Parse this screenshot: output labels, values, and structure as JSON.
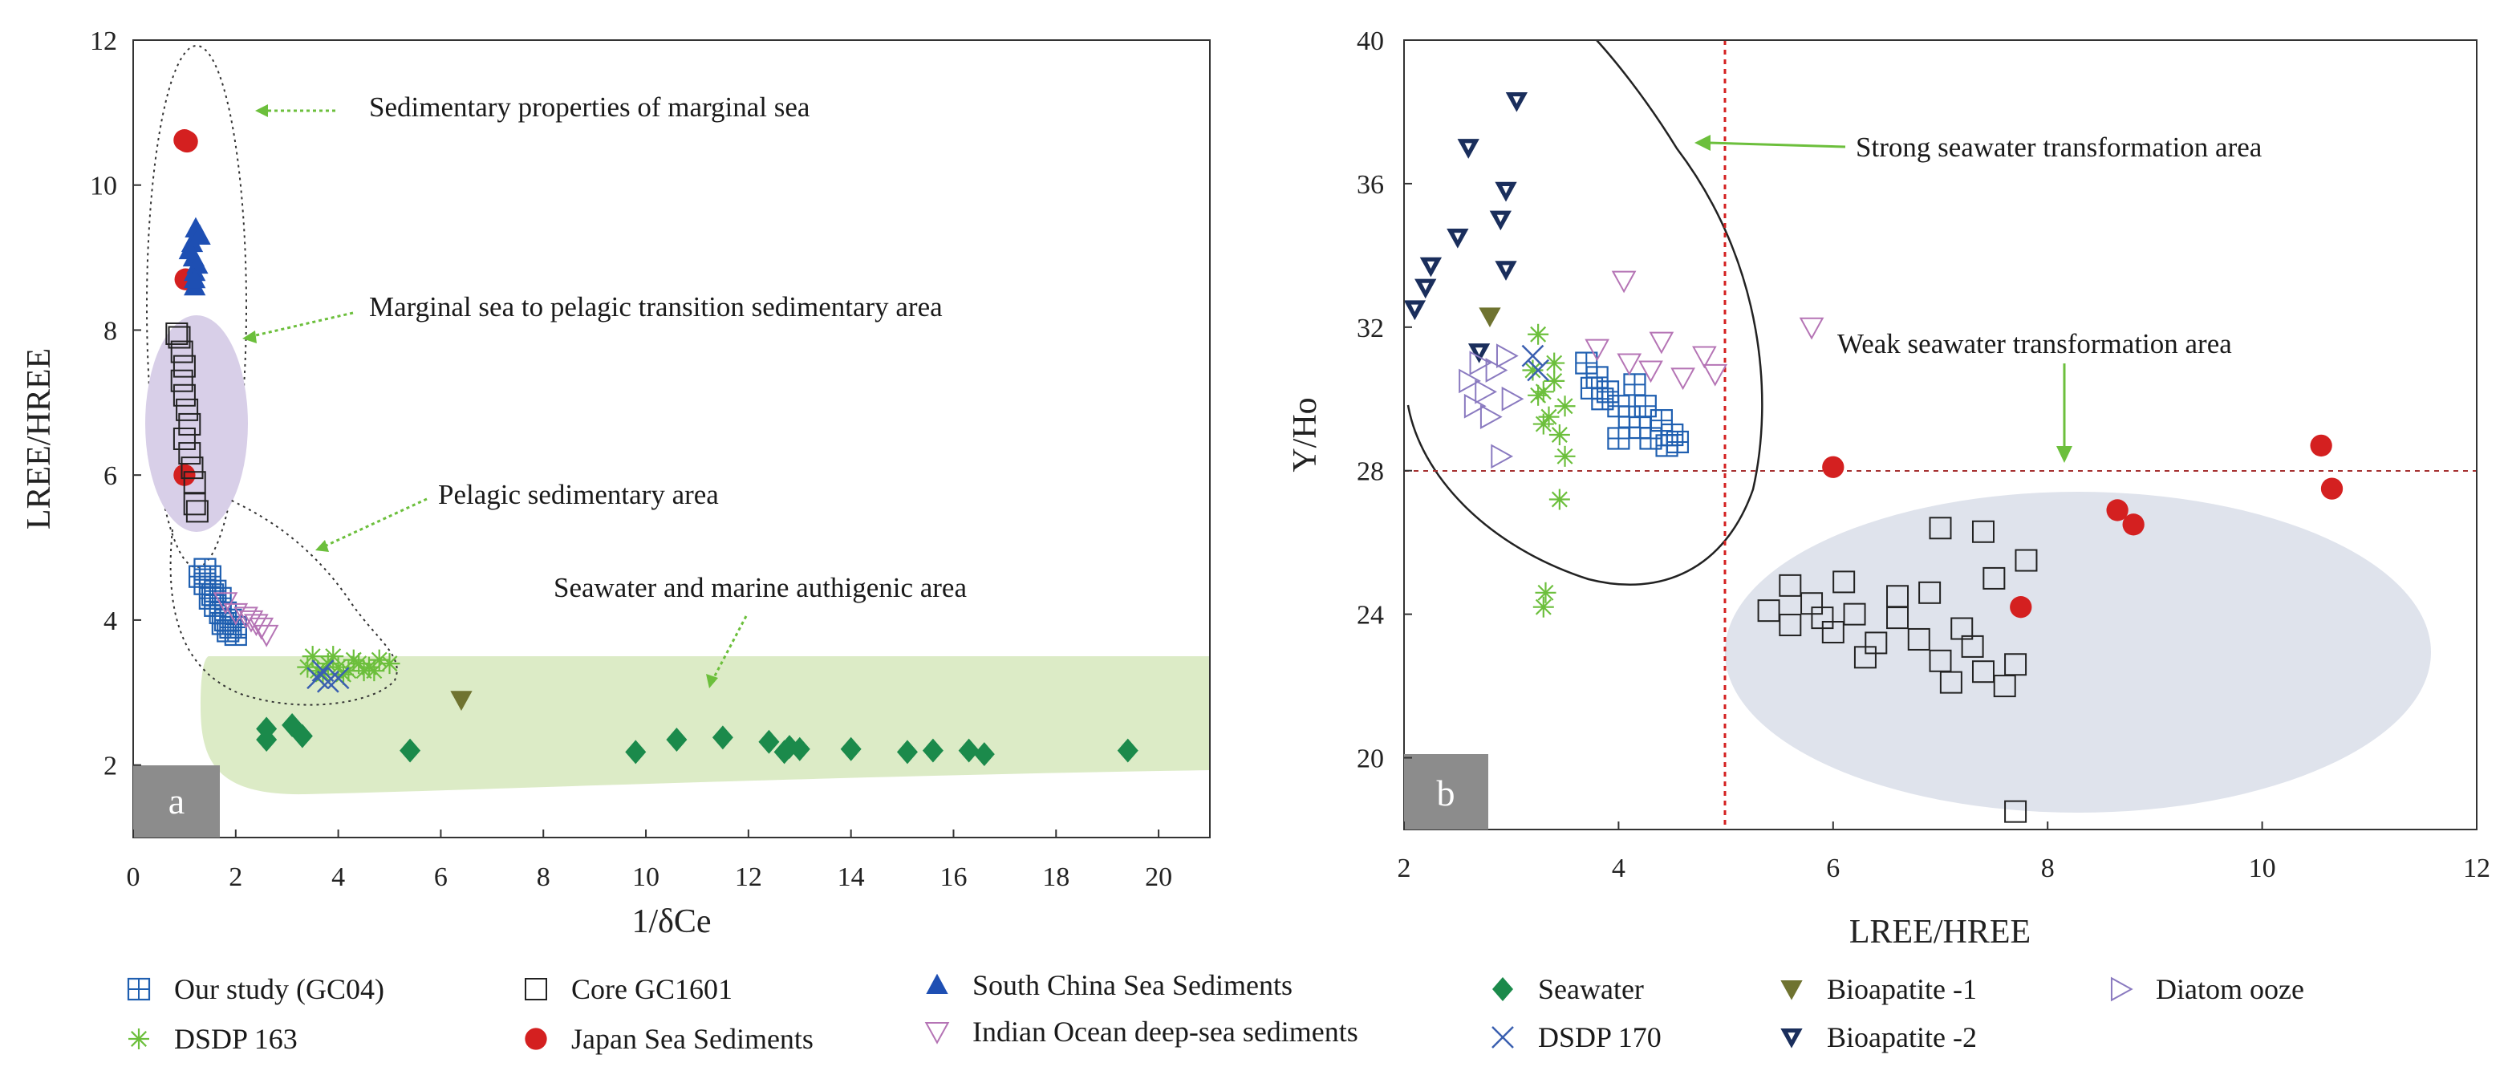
{
  "chart_data": [
    {
      "id": "a",
      "type": "scatter",
      "panel_label": "a",
      "xlabel": "1/δCe",
      "ylabel": "LREE/HREE",
      "xlim": [
        0,
        21
      ],
      "ylim": [
        1,
        12
      ],
      "xticks": [
        0,
        2,
        4,
        6,
        8,
        10,
        12,
        14,
        16,
        18,
        20
      ],
      "yticks": [
        2,
        4,
        6,
        8,
        10,
        12
      ],
      "annotations": [
        {
          "text": "Sedimentary properties of marginal sea",
          "x": 4.6,
          "y": 10.9
        },
        {
          "text": "Marginal sea to pelagic transition sedimentary area",
          "x": 4.6,
          "y": 8.15
        },
        {
          "text": "Pelagic sedimentary area",
          "x": 5.9,
          "y": 5.3
        },
        {
          "text": "Seawater and marine authigenic area",
          "x": 8.2,
          "y": 3.6
        }
      ],
      "series": [
        {
          "name": "Japan Sea Sediments",
          "points": [
            [
              1.05,
              10.6
            ],
            [
              1.0,
              10.62
            ],
            [
              1.02,
              8.7
            ],
            [
              1.0,
              6.0
            ]
          ]
        },
        {
          "name": "South China Sea Sediments",
          "points": [
            [
              1.15,
              9.2
            ],
            [
              1.18,
              9.0
            ],
            [
              1.2,
              8.8
            ],
            [
              1.2,
              8.6
            ],
            [
              1.22,
              9.4
            ],
            [
              1.25,
              8.9
            ],
            [
              1.1,
              9.1
            ],
            [
              1.3,
              9.3
            ],
            [
              1.2,
              8.7
            ]
          ]
        },
        {
          "name": "Core GC1601",
          "points": [
            [
              0.9,
              7.9
            ],
            [
              0.95,
              7.7
            ],
            [
              1.0,
              7.5
            ],
            [
              0.95,
              7.3
            ],
            [
              1.0,
              7.1
            ],
            [
              1.05,
              6.9
            ],
            [
              1.1,
              6.7
            ],
            [
              1.0,
              6.5
            ],
            [
              1.1,
              6.3
            ],
            [
              1.15,
              6.1
            ],
            [
              1.2,
              5.9
            ],
            [
              1.2,
              5.6
            ],
            [
              1.25,
              5.5
            ],
            [
              0.85,
              7.95
            ]
          ]
        },
        {
          "name": "Our study (GC04)",
          "points": [
            [
              1.3,
              4.6
            ],
            [
              1.4,
              4.5
            ],
            [
              1.5,
              4.3
            ],
            [
              1.6,
              4.2
            ],
            [
              1.7,
              4.1
            ],
            [
              1.8,
              4.0
            ],
            [
              1.9,
              3.9
            ],
            [
              2.0,
              3.8
            ],
            [
              1.5,
              4.6
            ],
            [
              1.6,
              4.4
            ],
            [
              1.7,
              4.3
            ],
            [
              1.8,
              4.1
            ],
            [
              1.9,
              4.0
            ],
            [
              2.0,
              3.9
            ],
            [
              1.4,
              4.7
            ],
            [
              1.55,
              4.35
            ],
            [
              1.75,
              3.95
            ],
            [
              1.85,
              3.85
            ]
          ]
        },
        {
          "name": "Indian Ocean deep-sea sediments",
          "points": [
            [
              1.8,
              4.25
            ],
            [
              2.0,
              4.1
            ],
            [
              2.3,
              4.0
            ],
            [
              2.5,
              3.9
            ],
            [
              2.6,
              3.8
            ],
            [
              2.2,
              4.05
            ],
            [
              2.4,
              3.95
            ]
          ]
        },
        {
          "name": "DSDP 163",
          "points": [
            [
              3.4,
              3.35
            ],
            [
              3.6,
              3.3
            ],
            [
              3.8,
              3.4
            ],
            [
              4.0,
              3.35
            ],
            [
              4.2,
              3.3
            ],
            [
              4.4,
              3.4
            ],
            [
              4.6,
              3.35
            ],
            [
              4.8,
              3.45
            ],
            [
              5.0,
              3.4
            ],
            [
              3.5,
              3.5
            ],
            [
              4.1,
              3.25
            ],
            [
              4.5,
              3.3
            ],
            [
              3.7,
              3.25
            ],
            [
              4.3,
              3.45
            ],
            [
              3.9,
              3.5
            ],
            [
              4.7,
              3.3
            ]
          ]
        },
        {
          "name": "DSDP 170",
          "points": [
            [
              3.6,
              3.2
            ],
            [
              3.8,
              3.15
            ],
            [
              4.0,
              3.2
            ],
            [
              3.7,
              3.3
            ]
          ]
        },
        {
          "name": "Seawater",
          "points": [
            [
              2.6,
              2.5
            ],
            [
              2.6,
              2.35
            ],
            [
              3.1,
              2.55
            ],
            [
              3.3,
              2.4
            ],
            [
              5.4,
              2.2
            ],
            [
              9.8,
              2.18
            ],
            [
              10.6,
              2.35
            ],
            [
              11.5,
              2.38
            ],
            [
              12.4,
              2.32
            ],
            [
              12.7,
              2.18
            ],
            [
              12.8,
              2.25
            ],
            [
              13.0,
              2.22
            ],
            [
              14.0,
              2.22
            ],
            [
              15.1,
              2.18
            ],
            [
              15.6,
              2.2
            ],
            [
              16.3,
              2.2
            ],
            [
              16.6,
              2.15
            ],
            [
              19.4,
              2.2
            ]
          ]
        },
        {
          "name": "Bioapatite -1",
          "points": [
            [
              6.4,
              2.9
            ]
          ]
        }
      ]
    },
    {
      "id": "b",
      "type": "scatter",
      "panel_label": "b",
      "xlabel": "LREE/HREE",
      "ylabel": "Y/Ho",
      "xlim": [
        2,
        12
      ],
      "ylim": [
        18,
        40
      ],
      "xticks": [
        2,
        4,
        6,
        8,
        10,
        12
      ],
      "yticks": [
        20,
        24,
        28,
        32,
        36,
        40
      ],
      "reference_lines": {
        "x": 5,
        "y": 28
      },
      "annotations": [
        {
          "text": "Strong seawater transformation area",
          "x": 6.25,
          "y": 37.0
        },
        {
          "text": "Weak seawater transformation area",
          "x": 6.1,
          "y": 32.4
        }
      ],
      "series": [
        {
          "name": "Bioapatite -2",
          "points": [
            [
              2.1,
              32.5
            ],
            [
              2.2,
              33.1
            ],
            [
              2.25,
              33.7
            ],
            [
              2.5,
              34.5
            ],
            [
              2.6,
              37.0
            ],
            [
              2.7,
              31.3
            ],
            [
              2.9,
              35.0
            ],
            [
              2.95,
              35.8
            ],
            [
              2.95,
              33.6
            ],
            [
              3.05,
              38.3
            ]
          ]
        },
        {
          "name": "Bioapatite -1",
          "points": [
            [
              2.8,
              32.3
            ]
          ]
        },
        {
          "name": "Diatom ooze",
          "points": [
            [
              2.6,
              30.5
            ],
            [
              2.65,
              29.8
            ],
            [
              2.7,
              31.0
            ],
            [
              2.75,
              30.2
            ],
            [
              2.8,
              29.5
            ],
            [
              2.85,
              30.8
            ],
            [
              2.9,
              28.4
            ],
            [
              2.95,
              31.2
            ],
            [
              3.0,
              30.0
            ]
          ]
        },
        {
          "name": "DSDP 163",
          "points": [
            [
              3.2,
              30.8
            ],
            [
              3.25,
              31.8
            ],
            [
              3.3,
              30.2
            ],
            [
              3.35,
              29.5
            ],
            [
              3.4,
              30.5
            ],
            [
              3.45,
              29.0
            ],
            [
              3.5,
              28.4
            ],
            [
              3.3,
              24.2
            ],
            [
              3.32,
              24.6
            ],
            [
              3.45,
              27.2
            ],
            [
              3.25,
              30.1
            ],
            [
              3.4,
              31.0
            ],
            [
              3.5,
              29.8
            ],
            [
              3.3,
              29.3
            ]
          ]
        },
        {
          "name": "DSDP 170",
          "points": [
            [
              3.2,
              31.2
            ],
            [
              3.25,
              30.8
            ]
          ]
        },
        {
          "name": "Our study (GC04)",
          "points": [
            [
              3.7,
              31.0
            ],
            [
              3.8,
              30.6
            ],
            [
              3.9,
              30.2
            ],
            [
              4.0,
              29.8
            ],
            [
              4.1,
              29.5
            ],
            [
              4.2,
              29.2
            ],
            [
              4.3,
              28.9
            ],
            [
              4.4,
              29.4
            ],
            [
              4.5,
              29.0
            ],
            [
              4.55,
              28.8
            ],
            [
              3.85,
              30.0
            ],
            [
              4.0,
              28.9
            ],
            [
              4.25,
              29.8
            ],
            [
              4.45,
              28.7
            ],
            [
              3.75,
              30.3
            ],
            [
              4.15,
              30.4
            ]
          ]
        },
        {
          "name": "Indian Ocean deep-sea sediments",
          "points": [
            [
              3.8,
              31.4
            ],
            [
              4.1,
              31.0
            ],
            [
              4.3,
              30.8
            ],
            [
              4.6,
              30.6
            ],
            [
              4.8,
              31.2
            ],
            [
              4.9,
              30.7
            ],
            [
              5.8,
              32.0
            ],
            [
              4.05,
              33.3
            ],
            [
              4.4,
              31.6
            ]
          ]
        },
        {
          "name": "Core GC1601",
          "points": [
            [
              5.4,
              24.1
            ],
            [
              5.6,
              23.7
            ],
            [
              5.8,
              24.3
            ],
            [
              6.0,
              23.5
            ],
            [
              6.2,
              24.0
            ],
            [
              6.4,
              23.2
            ],
            [
              6.6,
              23.9
            ],
            [
              6.8,
              23.3
            ],
            [
              7.0,
              22.7
            ],
            [
              7.2,
              23.6
            ],
            [
              7.4,
              22.4
            ],
            [
              7.6,
              22.0
            ],
            [
              7.7,
              22.6
            ],
            [
              5.6,
              24.8
            ],
            [
              6.1,
              24.9
            ],
            [
              6.6,
              24.5
            ],
            [
              7.0,
              26.4
            ],
            [
              7.4,
              26.3
            ],
            [
              7.5,
              25.0
            ],
            [
              7.8,
              25.5
            ],
            [
              6.9,
              24.6
            ],
            [
              7.7,
              18.5
            ],
            [
              7.1,
              22.1
            ],
            [
              7.3,
              23.1
            ],
            [
              5.9,
              23.9
            ],
            [
              6.3,
              22.8
            ]
          ]
        },
        {
          "name": "Japan Sea Sediments",
          "points": [
            [
              6.0,
              28.1
            ],
            [
              7.75,
              24.2
            ],
            [
              8.65,
              26.9
            ],
            [
              8.8,
              26.5
            ],
            [
              10.55,
              28.7
            ],
            [
              10.65,
              27.5
            ]
          ]
        }
      ]
    }
  ],
  "legend": {
    "items": [
      {
        "label": "Our study (GC04)",
        "color": "#1f5fb0",
        "symbol": "square-plus"
      },
      {
        "label": "DSDP 163",
        "color": "#6cbf3c",
        "symbol": "asterisk"
      },
      {
        "label": "Core GC1601",
        "color": "#222222",
        "symbol": "square-open"
      },
      {
        "label": "Japan Sea Sediments",
        "color": "#d42020",
        "symbol": "circle"
      },
      {
        "label": "South China Sea Sediments",
        "color": "#1e4fb3",
        "symbol": "triangle-up"
      },
      {
        "label": "Indian Ocean deep-sea sediments",
        "color": "#b574b5",
        "symbol": "triangle-down-open"
      },
      {
        "label": "Seawater",
        "color": "#1b8a4b",
        "symbol": "diamond"
      },
      {
        "label": "DSDP 170",
        "color": "#3a5fb0",
        "symbol": "cross"
      },
      {
        "label": "Bioapatite -1",
        "color": "#6f7330",
        "symbol": "triangle-down"
      },
      {
        "label": "Bioapatite -2",
        "color": "#1a2e5c",
        "symbol": "triangle-down-dark"
      },
      {
        "label": "Diatom ooze",
        "color": "#8a7ac0",
        "symbol": "triangle-right-open"
      }
    ]
  }
}
